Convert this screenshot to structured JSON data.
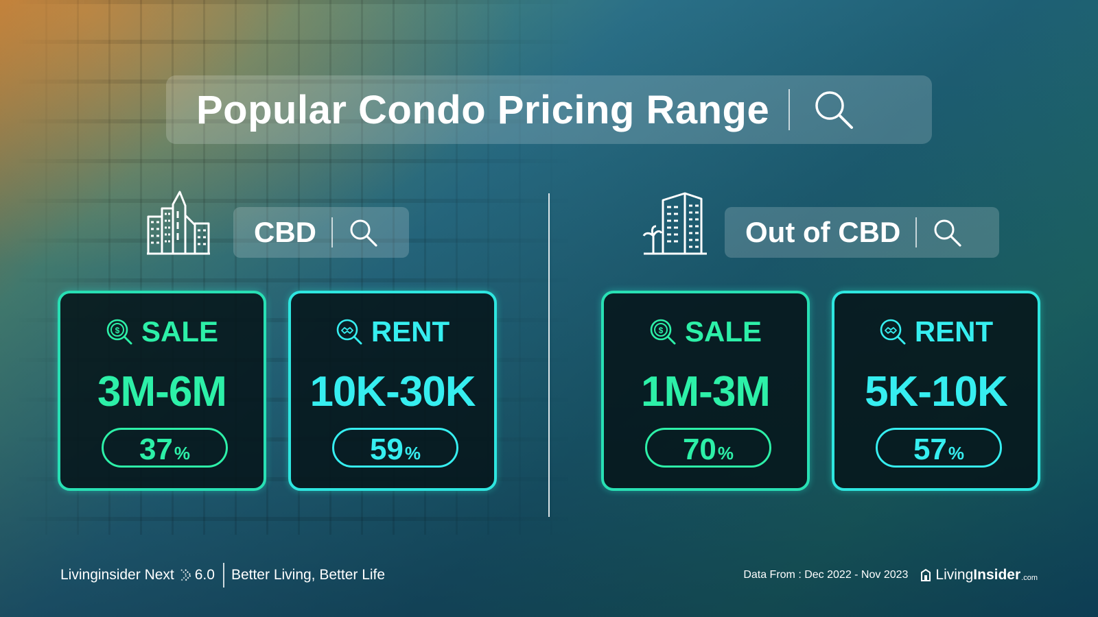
{
  "header": {
    "title": "Popular Condo Pricing Range"
  },
  "sections": [
    {
      "label": "CBD",
      "icon": "city-skyline-icon",
      "cards": [
        {
          "type": "SALE",
          "icon": "dollar-search-icon",
          "range": "3M-6M",
          "percent": "37",
          "unit": "%"
        },
        {
          "type": "RENT",
          "icon": "handshake-search-icon",
          "range": "10K-30K",
          "percent": "59",
          "unit": "%"
        }
      ]
    },
    {
      "label": "Out of CBD",
      "icon": "building-palm-icon",
      "cards": [
        {
          "type": "SALE",
          "icon": "dollar-search-icon",
          "range": "1M-3M",
          "percent": "70",
          "unit": "%"
        },
        {
          "type": "RENT",
          "icon": "handshake-search-icon",
          "range": "5K-10K",
          "percent": "57",
          "unit": "%"
        }
      ]
    }
  ],
  "footer": {
    "brand": "Livinginsider Next",
    "version": "6.0",
    "tagline": "Better Living, Better Life",
    "data_from": "Data From : Dec 2022 - Nov 2023",
    "logo_light": "Living",
    "logo_bold": "Insider",
    "logo_suffix": ".com"
  },
  "colors": {
    "sale_accent": "#2df0a8",
    "rent_accent": "#36eef0"
  }
}
